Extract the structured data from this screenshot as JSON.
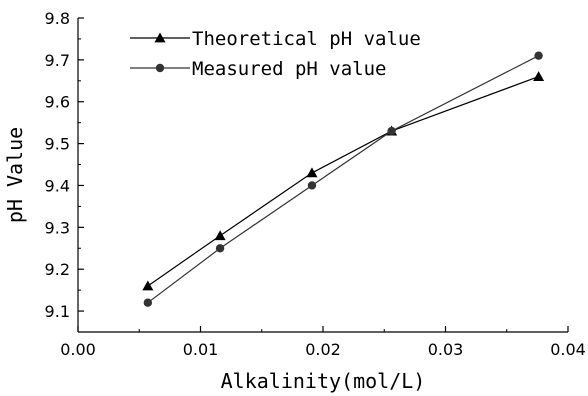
{
  "chart_data": {
    "type": "line",
    "xlabel": "Alkalinity(mol/L)",
    "ylabel": "pH Value",
    "xlim": [
      0.0,
      0.04
    ],
    "ylim": [
      9.05,
      9.8
    ],
    "x_ticks": [
      "0.00",
      "0.01",
      "0.02",
      "0.03",
      "0.04"
    ],
    "y_ticks": [
      "9.1",
      "9.2",
      "9.3",
      "9.4",
      "9.5",
      "9.6",
      "9.7",
      "9.8"
    ],
    "x_tick_values": [
      0.0,
      0.01,
      0.02,
      0.03,
      0.04
    ],
    "y_tick_values": [
      9.1,
      9.2,
      9.3,
      9.4,
      9.5,
      9.6,
      9.7,
      9.8
    ],
    "grid": false,
    "legend_position": "top-left",
    "series": [
      {
        "name": "Theoretical pH value",
        "marker": "triangle",
        "color": "#000000",
        "x": [
          0.0057,
          0.0116,
          0.0191,
          0.0256,
          0.0376
        ],
        "y": [
          9.16,
          9.28,
          9.43,
          9.53,
          9.66
        ]
      },
      {
        "name": "Measured pH value",
        "marker": "circle",
        "color": "#333333",
        "x": [
          0.0057,
          0.0116,
          0.0191,
          0.0256,
          0.0376
        ],
        "y": [
          9.12,
          9.25,
          9.4,
          9.53,
          9.71
        ]
      }
    ]
  }
}
